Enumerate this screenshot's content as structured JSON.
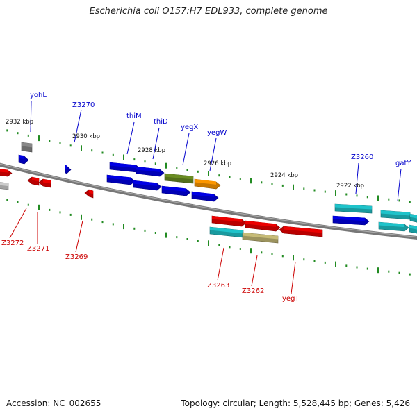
{
  "title": "Escherichia coli O157:H7 EDL933, complete genome",
  "footer": {
    "accession": "Accession: NC_002655",
    "summary": "Topology: circular; Length: 5,528,445 bp; Genes: 5,426"
  },
  "colors": {
    "forward_label": "#0000cc",
    "reverse_label": "#cc0000",
    "backbone": "#777777",
    "tick": "#228b22",
    "blue": "#0000e8",
    "red": "#ee0000",
    "olive": "#6b8e23",
    "orange": "#ff9900",
    "teal": "#20c5cc",
    "khaki": "#c8bd78",
    "gray": "#8a8a8a",
    "lightgray": "#cfcfcf"
  },
  "scale_labels": [
    "2932 kbp",
    "2930 kbp",
    "2928 kbp",
    "2926 kbp",
    "2924 kbp",
    "2922 kbp"
  ],
  "forward_gene_labels": [
    "yohL",
    "Z3270",
    "thiM",
    "thiD",
    "yegX",
    "yegW",
    "Z3260",
    "gatY"
  ],
  "reverse_gene_labels": [
    "Z3272",
    "Z3271",
    "Z3269",
    "Z3263",
    "Z3262",
    "yegT"
  ]
}
